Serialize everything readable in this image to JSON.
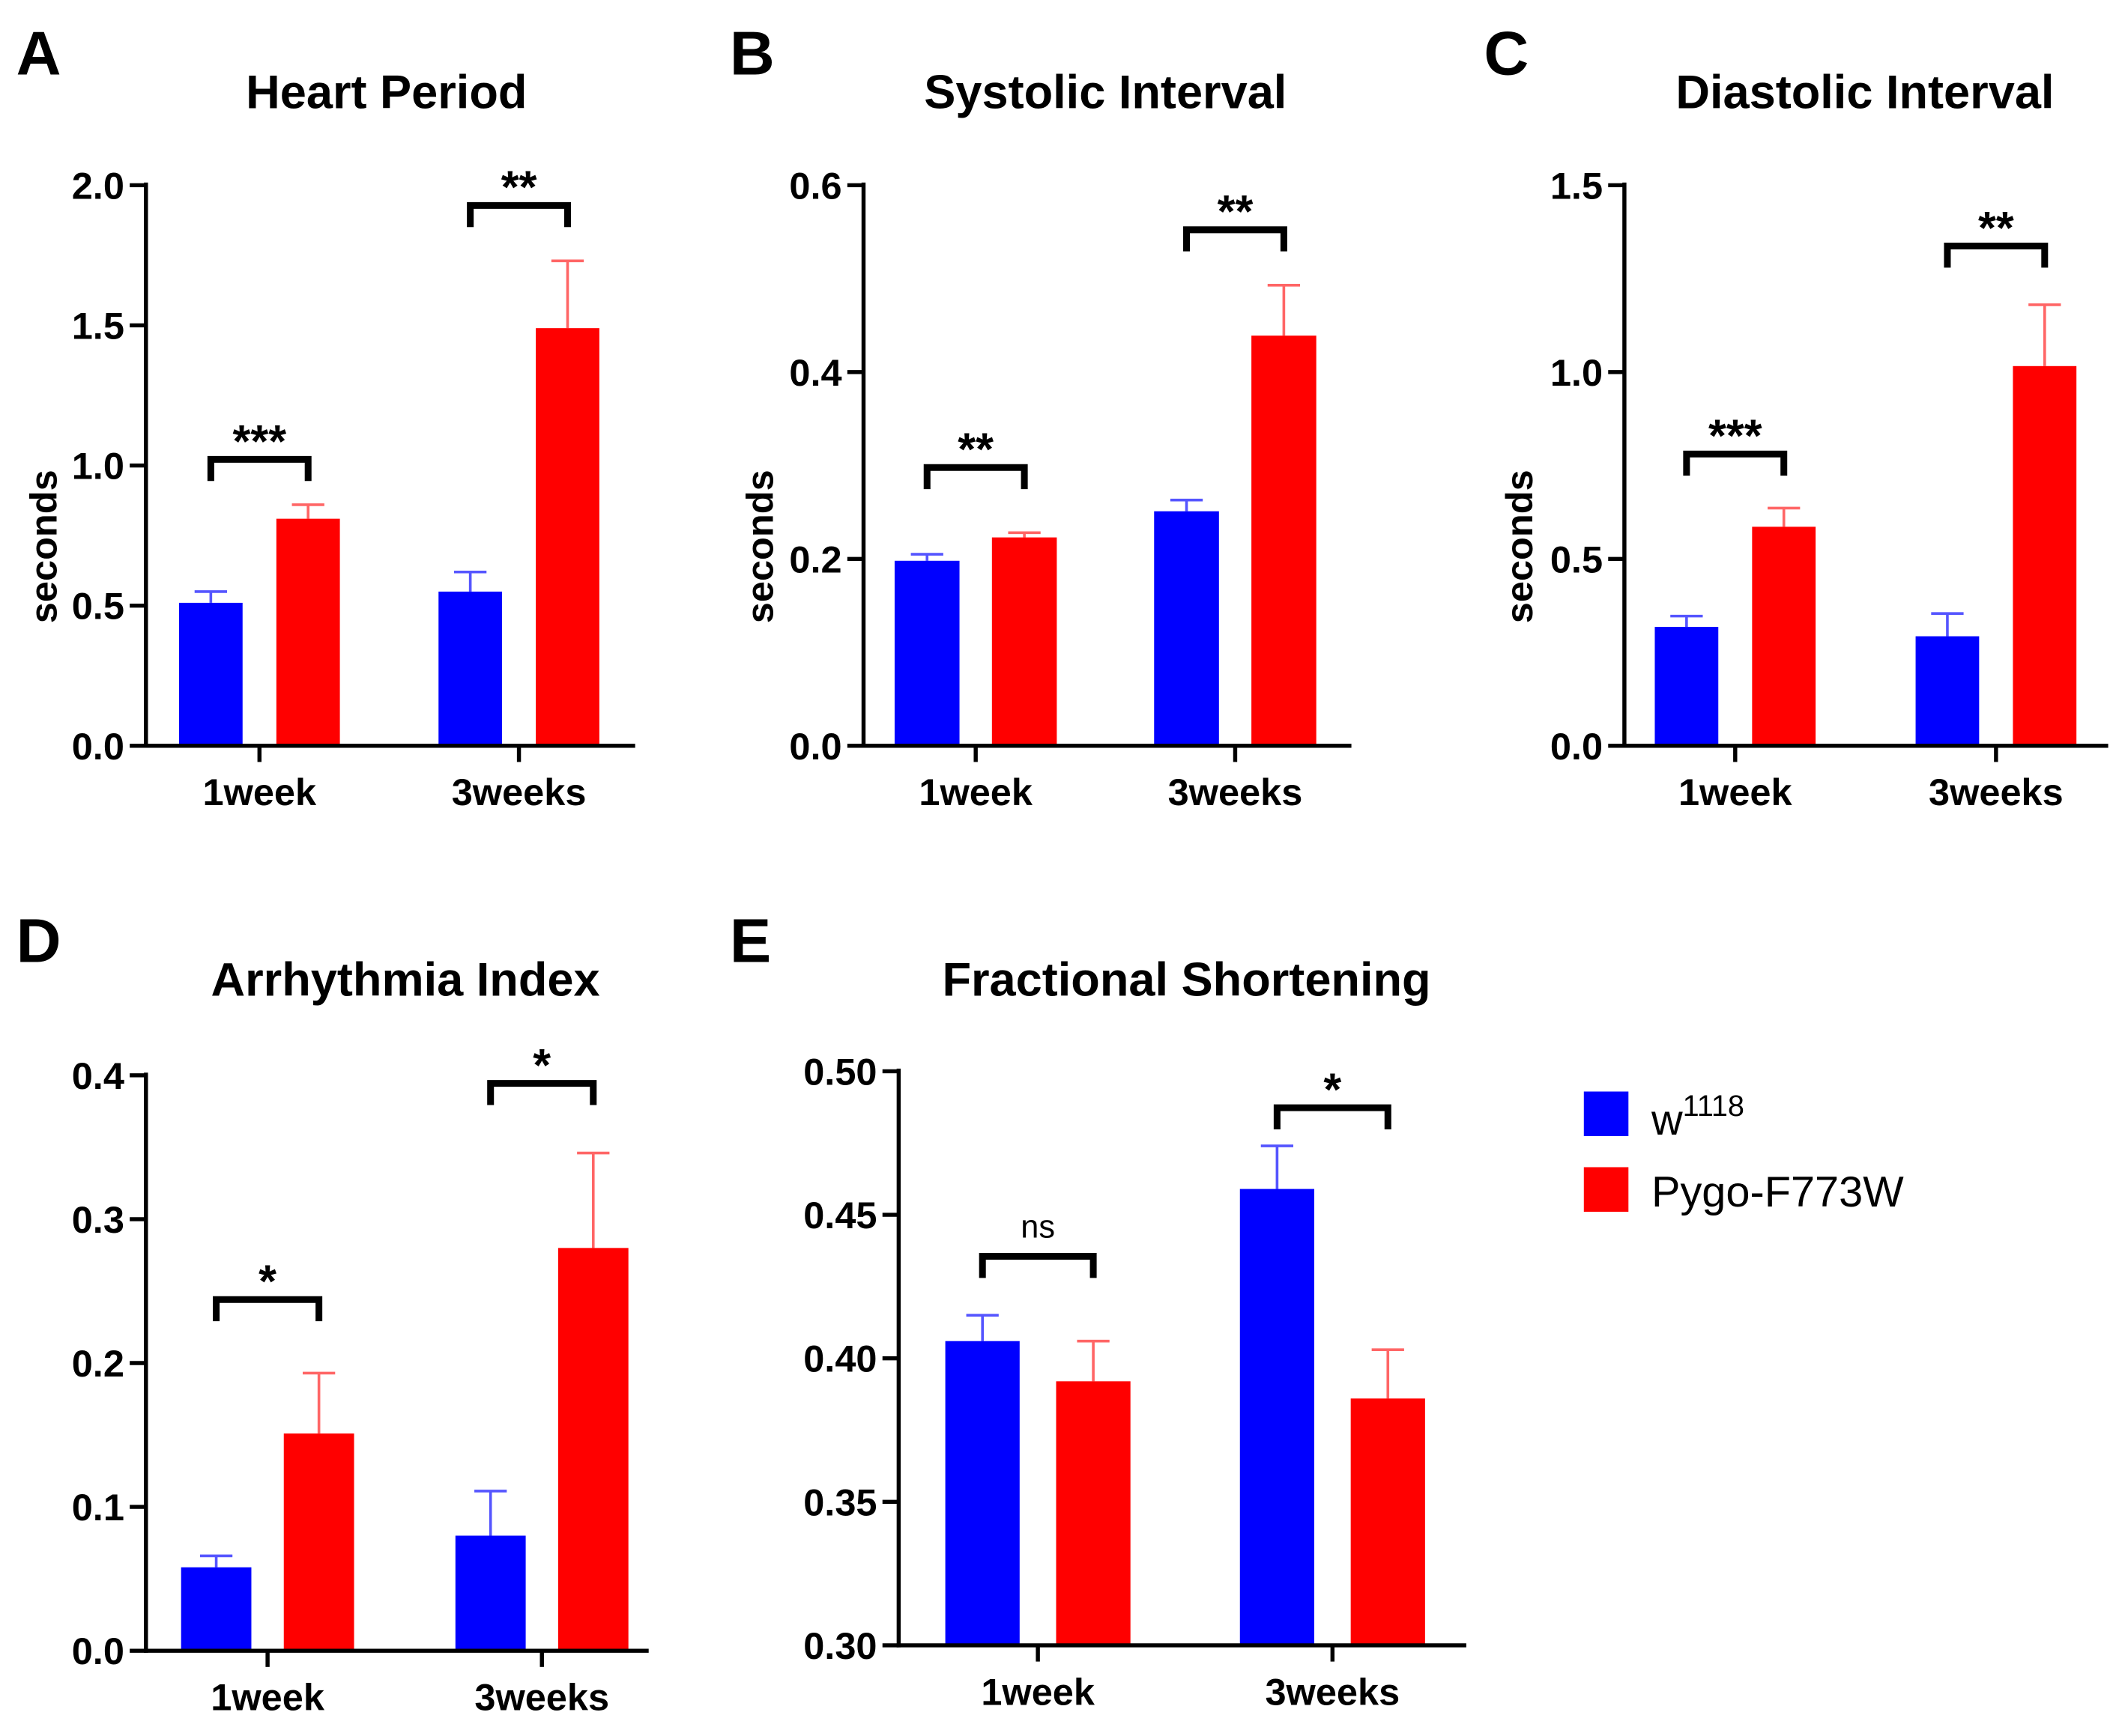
{
  "chart_data": [
    {
      "type": "bar",
      "panel": "A",
      "title": "Heart Period",
      "ylabel": "seconds",
      "xlabel": "",
      "categories": [
        "1week",
        "3weeks"
      ],
      "ylim": [
        0,
        2.0
      ],
      "yticks": [
        "0.0",
        "0.5",
        "1.0",
        "1.5",
        "2.0"
      ],
      "tick_values": [
        0,
        0.5,
        1.0,
        1.5,
        2.0
      ],
      "series": [
        {
          "name": "w1118",
          "values": [
            0.51,
            0.55
          ],
          "errors": [
            0.04,
            0.07
          ]
        },
        {
          "name": "Pygo-F773W",
          "values": [
            0.81,
            1.49
          ],
          "errors": [
            0.05,
            0.24
          ]
        }
      ],
      "significance": [
        "***",
        "**"
      ]
    },
    {
      "type": "bar",
      "panel": "B",
      "title": "Systolic Interval",
      "ylabel": "seconds",
      "xlabel": "",
      "categories": [
        "1week",
        "3weeks"
      ],
      "ylim": [
        0,
        0.6
      ],
      "yticks": [
        "0.0",
        "0.2",
        "0.4",
        "0.6"
      ],
      "tick_values": [
        0,
        0.2,
        0.4,
        0.6
      ],
      "series": [
        {
          "name": "w1118",
          "values": [
            0.198,
            0.251
          ],
          "errors": [
            0.007,
            0.012
          ]
        },
        {
          "name": "Pygo-F773W",
          "values": [
            0.223,
            0.439
          ],
          "errors": [
            0.005,
            0.054
          ]
        }
      ],
      "significance": [
        "**",
        "**"
      ]
    },
    {
      "type": "bar",
      "panel": "C",
      "title": "Diastolic Interval",
      "ylabel": "seconds",
      "xlabel": "",
      "categories": [
        "1week",
        "3weeks"
      ],
      "ylim": [
        0,
        1.5
      ],
      "yticks": [
        "0.0",
        "0.5",
        "1.0",
        "1.5"
      ],
      "tick_values": [
        0,
        0.5,
        1.0,
        1.5
      ],
      "series": [
        {
          "name": "w1118",
          "values": [
            0.318,
            0.293
          ],
          "errors": [
            0.029,
            0.061
          ]
        },
        {
          "name": "Pygo-F773W",
          "values": [
            0.586,
            1.016
          ],
          "errors": [
            0.05,
            0.164
          ]
        }
      ],
      "significance": [
        "***",
        "**"
      ]
    },
    {
      "type": "bar",
      "panel": "D",
      "title": "Arrhythmia Index",
      "ylabel": "",
      "xlabel": "",
      "categories": [
        "1week",
        "3weeks"
      ],
      "ylim": [
        0,
        0.4
      ],
      "yticks": [
        "0.0",
        "0.1",
        "0.2",
        "0.3",
        "0.4"
      ],
      "tick_values": [
        0,
        0.1,
        0.2,
        0.3,
        0.4
      ],
      "series": [
        {
          "name": "w1118",
          "values": [
            0.058,
            0.08
          ],
          "errors": [
            0.008,
            0.031
          ]
        },
        {
          "name": "Pygo-F773W",
          "values": [
            0.151,
            0.28
          ],
          "errors": [
            0.042,
            0.066
          ]
        }
      ],
      "significance": [
        "*",
        "*"
      ]
    },
    {
      "type": "bar",
      "panel": "E",
      "title": "Fractional Shortening",
      "ylabel": "",
      "xlabel": "",
      "categories": [
        "1week",
        "3weeks"
      ],
      "ylim": [
        0.3,
        0.5
      ],
      "yticks": [
        "0.30",
        "0.35",
        "0.40",
        "0.45",
        "0.50"
      ],
      "tick_values": [
        0.3,
        0.35,
        0.4,
        0.45,
        0.5
      ],
      "series": [
        {
          "name": "w1118",
          "values": [
            0.406,
            0.459
          ],
          "errors": [
            0.009,
            0.015
          ]
        },
        {
          "name": "Pygo-F773W",
          "values": [
            0.392,
            0.386
          ],
          "errors": [
            0.014,
            0.017
          ]
        }
      ],
      "significance": [
        "ns",
        "*"
      ]
    }
  ],
  "legend": {
    "items": [
      {
        "label": "w",
        "sup": "1118",
        "color": "#0000ff"
      },
      {
        "label": "Pygo-F773W",
        "sup": "",
        "color": "#ff0000"
      }
    ]
  },
  "colors": {
    "w1118": "#0000ff",
    "w1118_err": "#5555ff",
    "pygo": "#ff0000",
    "pygo_err": "#ff6666"
  }
}
